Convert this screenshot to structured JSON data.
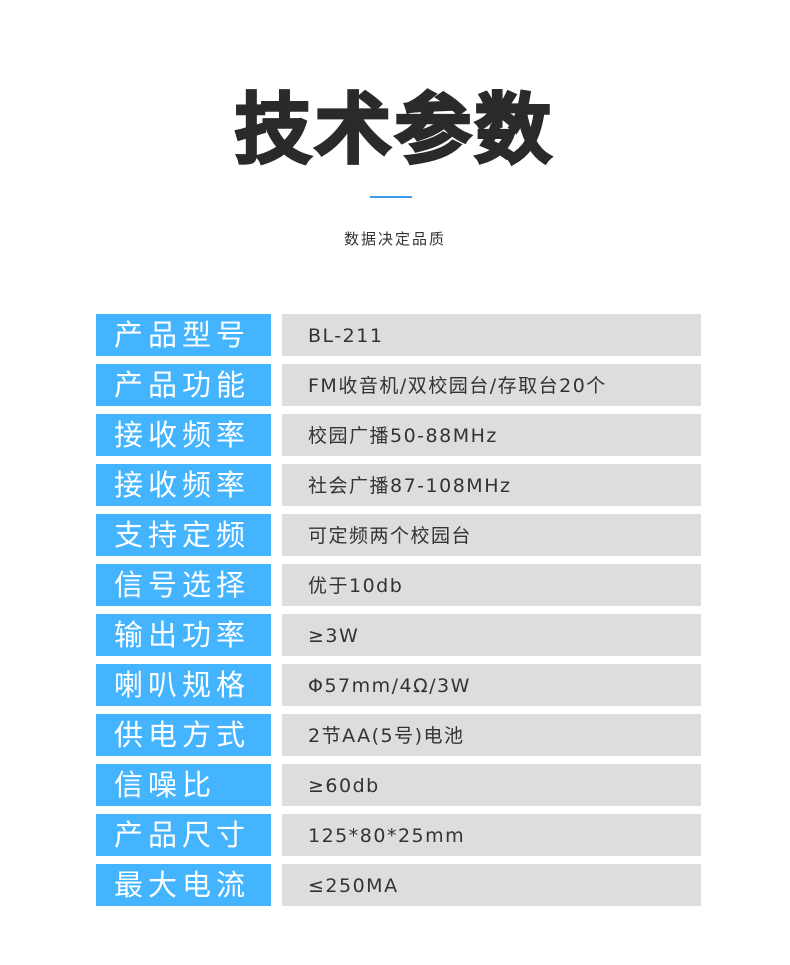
{
  "header": {
    "title": "技术参数",
    "subtitle": "数据决定品质",
    "accent_color": "#3d9be9"
  },
  "colors": {
    "label_bg": "#44b4ff",
    "value_bg": "#dddddd"
  },
  "specs": [
    {
      "label": "产品型号",
      "value": "BL-211"
    },
    {
      "label": "产品功能",
      "value": "FM收音机/双校园台/存取台20个"
    },
    {
      "label": "接收频率",
      "value": "校园广播50-88MHz"
    },
    {
      "label": "接收频率",
      "value": "社会广播87-108MHz"
    },
    {
      "label": "支持定频",
      "value": "可定频两个校园台"
    },
    {
      "label": "信号选择",
      "value": "优于10db"
    },
    {
      "label": "输出功率",
      "value": " ≥3W"
    },
    {
      "label": "喇叭规格",
      "value": " Φ57mm/4Ω/3W"
    },
    {
      "label": "供电方式",
      "value": " 2节AA(5号)电池"
    },
    {
      "label": "信噪比",
      "value": " ≥60db"
    },
    {
      "label": "产品尺寸",
      "value": " 125*80*25mm"
    },
    {
      "label": "最大电流",
      "value": " ≤250MA"
    }
  ]
}
